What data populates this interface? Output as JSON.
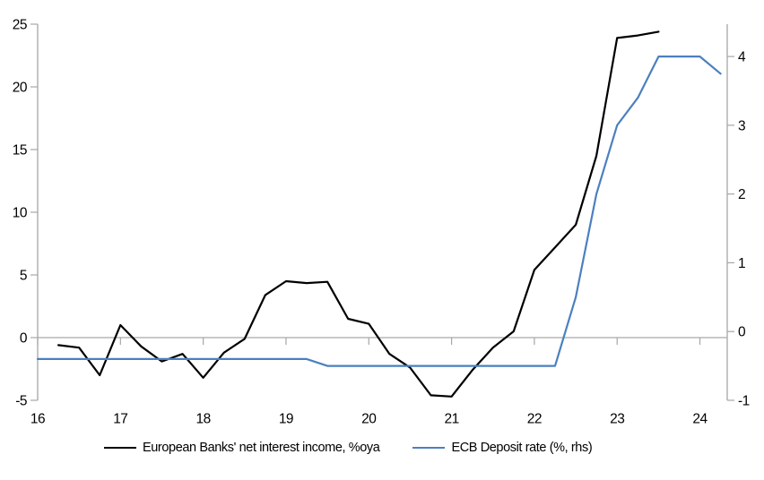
{
  "chart_data": {
    "type": "line",
    "title": "",
    "x_axis": {
      "min": 16,
      "max": 24.33,
      "ticks": [
        16,
        17,
        18,
        19,
        20,
        21,
        22,
        23,
        24
      ],
      "tick_labels": [
        "16",
        "17",
        "18",
        "19",
        "20",
        "21",
        "22",
        "23",
        "24"
      ]
    },
    "left_axis": {
      "min": -5,
      "max": 25,
      "ticks": [
        25,
        20,
        15,
        10,
        5,
        0,
        -5
      ]
    },
    "right_axis": {
      "min": -1,
      "max": 4.47,
      "ticks": [
        4,
        3,
        2,
        1,
        0,
        -1
      ]
    },
    "grid": "zero-line-only",
    "legend_position": "bottom",
    "series": [
      {
        "name": "European Banks' net interest income, %oya",
        "axis": "left",
        "color": "#000000",
        "x": [
          16.25,
          16.5,
          16.75,
          17.0,
          17.25,
          17.5,
          17.75,
          18.0,
          18.25,
          18.5,
          18.75,
          19.0,
          19.25,
          19.5,
          19.75,
          20.0,
          20.25,
          20.5,
          20.75,
          21.0,
          21.25,
          21.5,
          21.75,
          22.0,
          22.25,
          22.5,
          22.75,
          23.0,
          23.25,
          23.5
        ],
        "values": [
          -0.6,
          -0.8,
          -3.0,
          1.0,
          -0.7,
          -1.9,
          -1.3,
          -3.2,
          -1.2,
          -0.1,
          3.4,
          4.5,
          4.35,
          4.45,
          1.5,
          1.1,
          -1.3,
          -2.4,
          -4.6,
          -4.7,
          -2.6,
          -0.8,
          0.5,
          5.4,
          7.2,
          9.0,
          14.5,
          23.9,
          24.1,
          24.4
        ]
      },
      {
        "name": "ECB Deposit rate (%, rhs)",
        "axis": "right",
        "color": "#4b80bf",
        "x": [
          16.0,
          16.25,
          16.5,
          16.75,
          17.0,
          17.25,
          17.5,
          17.75,
          18.0,
          18.25,
          18.5,
          18.75,
          19.0,
          19.25,
          19.5,
          19.75,
          20.0,
          20.25,
          20.5,
          20.75,
          21.0,
          21.25,
          21.5,
          21.75,
          22.0,
          22.25,
          22.5,
          22.75,
          23.0,
          23.25,
          23.5,
          23.75,
          24.0,
          24.25
        ],
        "values": [
          -0.4,
          -0.4,
          -0.4,
          -0.4,
          -0.4,
          -0.4,
          -0.4,
          -0.4,
          -0.4,
          -0.4,
          -0.4,
          -0.4,
          -0.4,
          -0.4,
          -0.5,
          -0.5,
          -0.5,
          -0.5,
          -0.5,
          -0.5,
          -0.5,
          -0.5,
          -0.5,
          -0.5,
          -0.5,
          -0.5,
          0.5,
          2.0,
          3.0,
          3.4,
          4.0,
          4.0,
          4.0,
          3.75
        ]
      }
    ]
  },
  "colors": {
    "line1": "#000000",
    "line2": "#4b80bf",
    "axis": "#a6a6a6",
    "zero_line": "#a9a9a9",
    "background": "#ffffff",
    "text": "#000000"
  }
}
